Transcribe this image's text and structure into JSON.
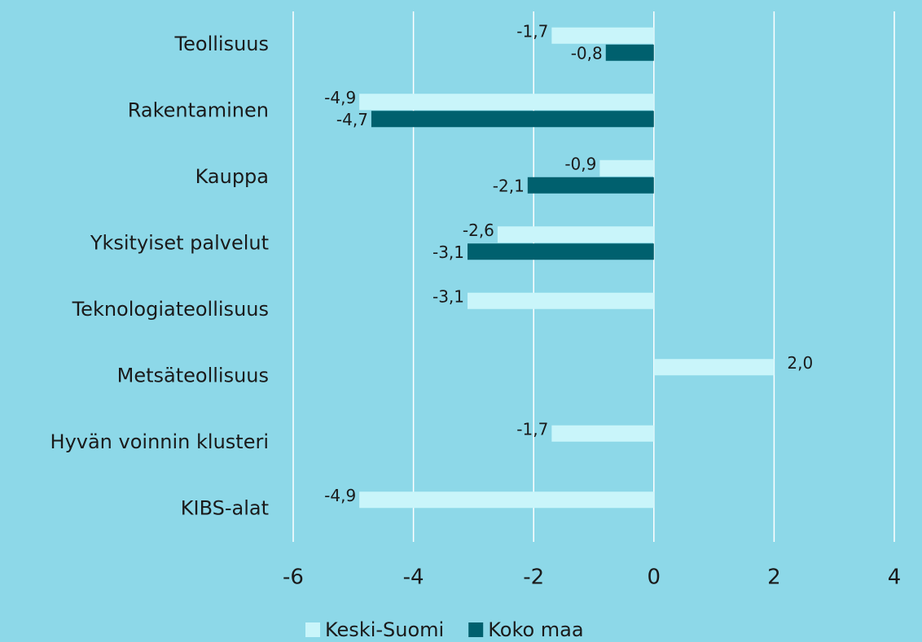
{
  "chart_data": {
    "type": "bar",
    "orientation": "horizontal",
    "categories": [
      "Teollisuus",
      "Rakentaminen",
      "Kauppa",
      "Yksityiset palvelut",
      "Teknologiateollisuus",
      "Metsäteollisuus",
      "Hyvän voinnin klusteri",
      "KIBS-alat"
    ],
    "series": [
      {
        "name": "Keski-Suomi",
        "color": "#c9f5fa",
        "values": [
          -1.7,
          -4.9,
          -0.9,
          -2.6,
          -3.1,
          2.0,
          -1.7,
          -4.9
        ],
        "value_labels": [
          "-1,7",
          "-4,9",
          "-0,9",
          "-2,6",
          "-3,1",
          "2,0",
          "-1,7",
          "-4,9"
        ]
      },
      {
        "name": "Koko maa",
        "color": "#00606e",
        "values": [
          -0.8,
          -4.7,
          -2.1,
          -3.1,
          null,
          null,
          null,
          null
        ],
        "value_labels": [
          "-0,8",
          "-4,7",
          "-2,1",
          "-3,1",
          null,
          null,
          null,
          null
        ]
      }
    ],
    "xlim": [
      -6,
      4
    ],
    "xticks": [
      -6,
      -4,
      -2,
      0,
      2,
      4
    ],
    "grid": true,
    "legend": "bottom"
  }
}
